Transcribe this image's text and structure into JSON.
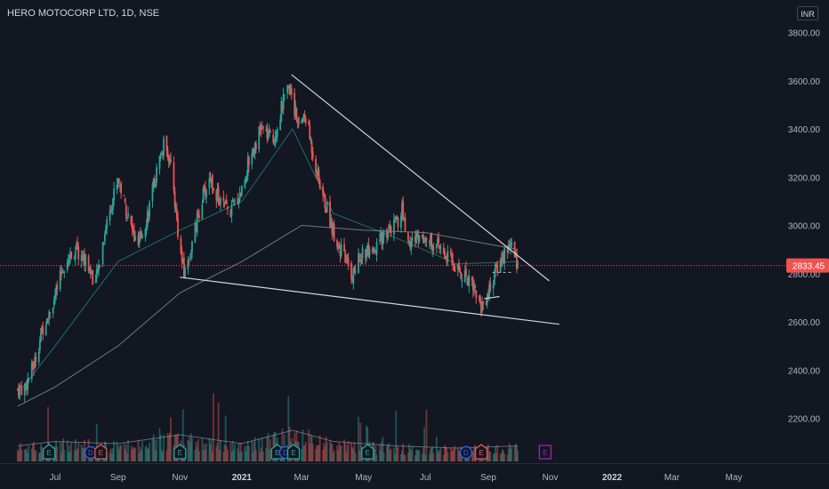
{
  "symbol": {
    "name": "HERO MOTOCORP LTD",
    "interval": "1D",
    "exchange": "NSE",
    "title": "HERO MOTOCORP LTD, 1D, NSE"
  },
  "currency_button": "INR",
  "colors": {
    "background": "#131722",
    "up": "#26a69a",
    "down": "#ef5350",
    "price_line": "#ef5350",
    "ma_short": "#26a69a",
    "ma_long": "#b2b5be",
    "trendline": "#d1d4dc",
    "earnings": "#26a69a",
    "dividend": "#2962ff",
    "split": "#ef5350",
    "future_event": "#9c27b0"
  },
  "chart_data": {
    "type": "candlestick",
    "symbol": "HERO MOTOCORP LTD, 1D, NSE",
    "currency": "INR",
    "last_price": 2833.45,
    "last_price_label": "2833.45",
    "y_ticks": [
      "3800.00",
      "3600.00",
      "3400.00",
      "3200.00",
      "3000.00",
      "2800.00",
      "2600.00",
      "2400.00",
      "2200.00"
    ],
    "y_tick_values": [
      3800,
      3600,
      3400,
      3200,
      3000,
      2800,
      2600,
      2400,
      2200
    ],
    "x_ticks": [
      "Jul",
      "Sep",
      "Nov",
      "2021",
      "Mar",
      "May",
      "Jul",
      "Sep",
      "Nov",
      "2022",
      "Mar",
      "May"
    ],
    "x_tick_dates": [
      "2020-07-01",
      "2020-09-01",
      "2020-11-01",
      "2021-01-01",
      "2021-03-01",
      "2021-05-01",
      "2021-07-01",
      "2021-09-01",
      "2021-11-01",
      "2022-01-01",
      "2022-03-01",
      "2022-05-01"
    ],
    "ylim": [
      2050,
      3850
    ],
    "grid": false,
    "price_path": [
      [
        "2020-05-25",
        2320
      ],
      [
        "2020-06-01",
        2330
      ],
      [
        "2020-06-10",
        2420
      ],
      [
        "2020-06-20",
        2600
      ],
      [
        "2020-07-01",
        2700
      ],
      [
        "2020-07-10",
        2840
      ],
      [
        "2020-07-20",
        2900
      ],
      [
        "2020-08-01",
        2850
      ],
      [
        "2020-08-10",
        2760
      ],
      [
        "2020-08-20",
        3000
      ],
      [
        "2020-09-01",
        3200
      ],
      [
        "2020-09-10",
        3050
      ],
      [
        "2020-09-20",
        2900
      ],
      [
        "2020-10-01",
        3060
      ],
      [
        "2020-10-10",
        3240
      ],
      [
        "2020-10-18",
        3360
      ],
      [
        "2020-10-25",
        3180
      ],
      [
        "2020-11-01",
        2900
      ],
      [
        "2020-11-05",
        2800
      ],
      [
        "2020-11-12",
        2900
      ],
      [
        "2020-11-22",
        3100
      ],
      [
        "2020-12-01",
        3200
      ],
      [
        "2020-12-10",
        3100
      ],
      [
        "2020-12-20",
        3050
      ],
      [
        "2021-01-01",
        3150
      ],
      [
        "2021-01-10",
        3300
      ],
      [
        "2021-01-20",
        3400
      ],
      [
        "2021-02-01",
        3350
      ],
      [
        "2021-02-10",
        3500
      ],
      [
        "2021-02-18",
        3580
      ],
      [
        "2021-02-25",
        3420
      ],
      [
        "2021-03-05",
        3450
      ],
      [
        "2021-03-12",
        3300
      ],
      [
        "2021-03-20",
        3150
      ],
      [
        "2021-04-01",
        2980
      ],
      [
        "2021-04-10",
        2880
      ],
      [
        "2021-04-20",
        2790
      ],
      [
        "2021-05-01",
        2900
      ],
      [
        "2021-05-10",
        2860
      ],
      [
        "2021-05-20",
        2960
      ],
      [
        "2021-06-01",
        3000
      ],
      [
        "2021-06-08",
        3060
      ],
      [
        "2021-06-15",
        2920
      ],
      [
        "2021-06-25",
        2960
      ],
      [
        "2021-07-05",
        2940
      ],
      [
        "2021-07-15",
        2900
      ],
      [
        "2021-07-25",
        2860
      ],
      [
        "2021-08-05",
        2800
      ],
      [
        "2021-08-15",
        2780
      ],
      [
        "2021-08-25",
        2660
      ],
      [
        "2021-09-01",
        2720
      ],
      [
        "2021-09-08",
        2810
      ],
      [
        "2021-09-15",
        2870
      ],
      [
        "2021-09-22",
        2930
      ],
      [
        "2021-09-30",
        2833
      ]
    ],
    "volume_profile": [
      [
        "2020-05-25",
        0.35
      ],
      [
        "2020-07-01",
        0.45
      ],
      [
        "2020-09-01",
        0.4
      ],
      [
        "2020-11-01",
        0.6
      ],
      [
        "2021-01-01",
        0.4
      ],
      [
        "2021-02-20",
        0.7
      ],
      [
        "2021-04-01",
        0.45
      ],
      [
        "2021-06-01",
        0.35
      ],
      [
        "2021-08-01",
        0.3
      ],
      [
        "2021-09-30",
        0.35
      ]
    ],
    "moving_averages": [
      {
        "color": "#26a69a",
        "points": [
          [
            "2020-05-25",
            2300
          ],
          [
            "2020-07-01",
            2500
          ],
          [
            "2020-09-01",
            2850
          ],
          [
            "2020-11-01",
            2980
          ],
          [
            "2021-01-01",
            3100
          ],
          [
            "2021-02-20",
            3400
          ],
          [
            "2021-04-01",
            3050
          ],
          [
            "2021-06-01",
            2950
          ],
          [
            "2021-08-01",
            2840
          ],
          [
            "2021-09-30",
            2850
          ]
        ]
      },
      {
        "color": "#b2b5be",
        "points": [
          [
            "2020-05-25",
            2250
          ],
          [
            "2020-07-01",
            2330
          ],
          [
            "2020-09-01",
            2500
          ],
          [
            "2020-11-01",
            2720
          ],
          [
            "2021-01-01",
            2850
          ],
          [
            "2021-03-01",
            3000
          ],
          [
            "2021-05-01",
            2980
          ],
          [
            "2021-07-01",
            2970
          ],
          [
            "2021-09-30",
            2900
          ]
        ]
      }
    ],
    "trendlines": [
      {
        "from": [
          "2021-02-19",
          3625
        ],
        "to": [
          "2021-10-31",
          2770
        ]
      },
      {
        "from": [
          "2020-11-01",
          2785
        ],
        "to": [
          "2021-11-10",
          2590
        ]
      },
      {
        "from": [
          "2021-08-28",
          2696
        ],
        "to": [
          "2021-09-12",
          2705
        ]
      }
    ],
    "events": [
      {
        "date": "2020-06-25",
        "type": "earnings",
        "label": "E"
      },
      {
        "date": "2020-08-05",
        "type": "dividend",
        "label": "D"
      },
      {
        "date": "2020-08-15",
        "type": "split",
        "label": "E"
      },
      {
        "date": "2020-11-01",
        "type": "earnings",
        "label": "E"
      },
      {
        "date": "2021-02-05",
        "type": "earnings",
        "label": "E"
      },
      {
        "date": "2021-02-13",
        "type": "dividend",
        "label": "D"
      },
      {
        "date": "2021-02-21",
        "type": "earnings",
        "label": "E"
      },
      {
        "date": "2021-05-05",
        "type": "earnings",
        "label": "E"
      },
      {
        "date": "2021-08-10",
        "type": "dividend",
        "label": "D"
      },
      {
        "date": "2021-08-25",
        "type": "split",
        "label": "E"
      },
      {
        "date": "2021-10-27",
        "type": "future",
        "label": "E"
      }
    ]
  }
}
